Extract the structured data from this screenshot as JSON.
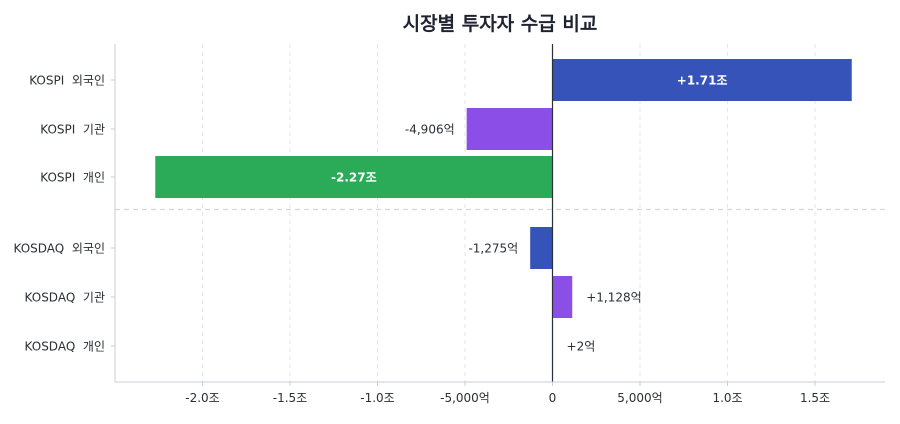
{
  "chart_data": {
    "type": "bar",
    "orientation": "horizontal",
    "title": "시장별 투자자 수급 비교",
    "unit": "억",
    "xlim": [
      -25000,
      19000
    ],
    "grid": "vertical dashed",
    "x_ticks": [
      {
        "value": -20000,
        "label": "-2.0조"
      },
      {
        "value": -15000,
        "label": "-1.5조"
      },
      {
        "value": -10000,
        "label": "-1.0조"
      },
      {
        "value": -5000,
        "label": "-5,000억"
      },
      {
        "value": 0,
        "label": "0"
      },
      {
        "value": 5000,
        "label": "5,000억"
      },
      {
        "value": 10000,
        "label": "1.0조"
      },
      {
        "value": 15000,
        "label": "1.5조"
      }
    ],
    "categories": [
      {
        "label": "KOSPI  외국인",
        "value": 17100,
        "display": "+1.71조",
        "label_inside": true,
        "color": "#3553b8"
      },
      {
        "label": "KOSPI  기관",
        "value": -4906,
        "display": "-4,906억",
        "label_inside": false,
        "color": "#8b4fe8"
      },
      {
        "label": "KOSPI  개인",
        "value": -22700,
        "display": "-2.27조",
        "label_inside": true,
        "color": "#2bab58"
      },
      {
        "label": "KOSDAQ  외국인",
        "value": -1275,
        "display": "-1,275억",
        "label_inside": false,
        "color": "#3553b8"
      },
      {
        "label": "KOSDAQ  기관",
        "value": 1128,
        "display": "+1,128억",
        "label_inside": false,
        "color": "#8b4fe8"
      },
      {
        "label": "KOSDAQ  개인",
        "value": 2,
        "display": "+2억",
        "label_inside": false,
        "color": "#2bab58"
      }
    ],
    "group_separator_after_index": 2
  }
}
